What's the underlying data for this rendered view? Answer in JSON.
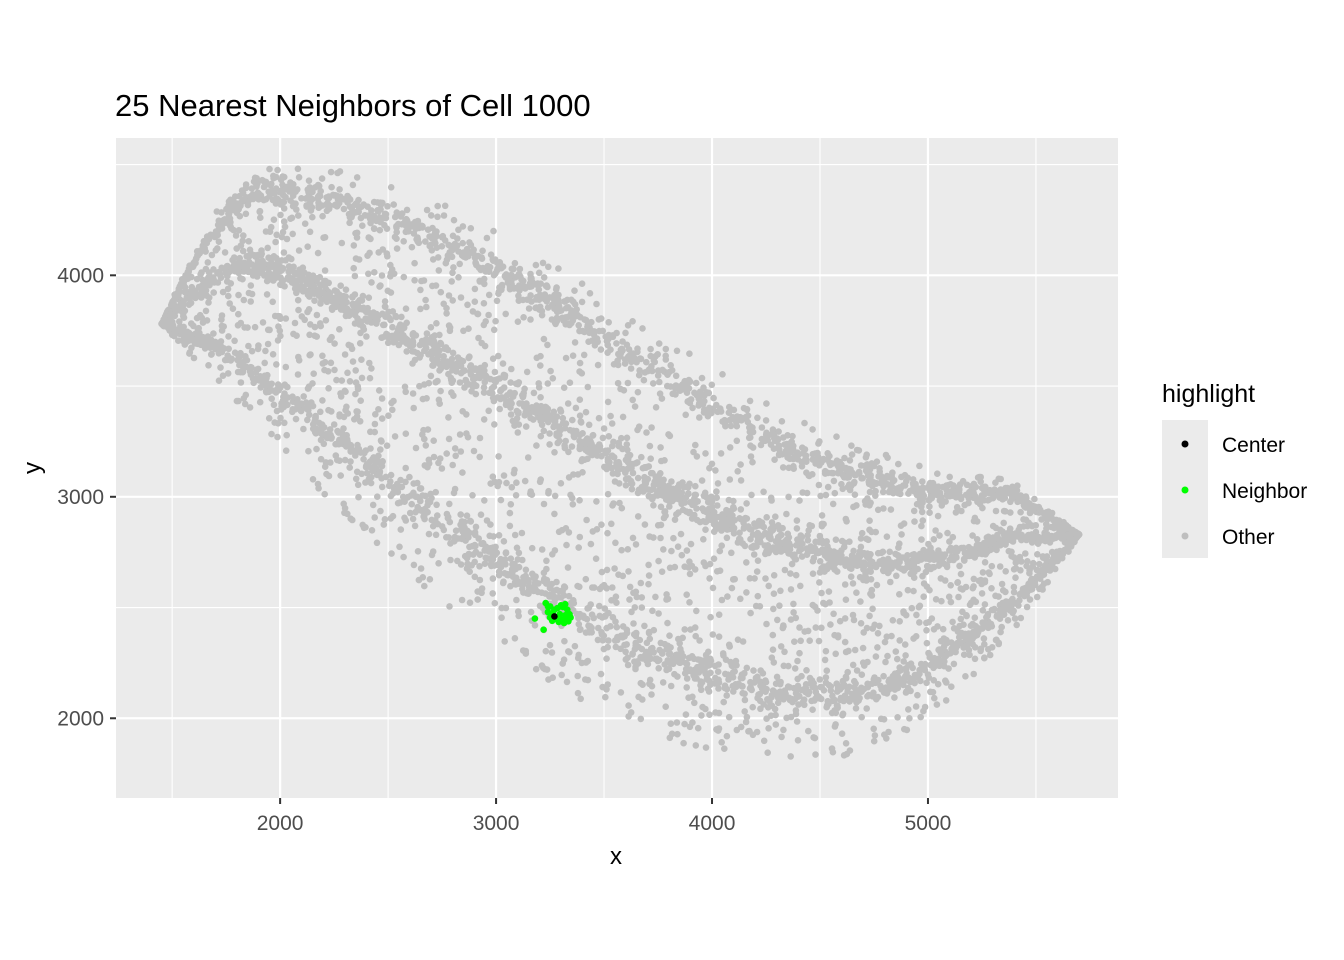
{
  "chart_data": {
    "type": "scatter",
    "title": "25 Nearest Neighbors of Cell 1000",
    "xlabel": "x",
    "ylabel": "y",
    "xlim": [
      1240,
      5880
    ],
    "ylim": [
      1640,
      4620
    ],
    "x_ticks": [
      2000,
      3000,
      4000,
      5000
    ],
    "y_ticks": [
      2000,
      3000,
      4000
    ],
    "x_tick_labels": [
      "2000",
      "3000",
      "4000",
      "5000"
    ],
    "y_tick_labels": [
      "2000",
      "3000",
      "4000"
    ],
    "grid": true,
    "legend_position": "right",
    "legend_title": "highlight",
    "series": [
      {
        "name": "Center",
        "color": "#000000",
        "points": [
          [
            3270,
            2460
          ]
        ]
      },
      {
        "name": "Neighbor",
        "color": "#00ff00",
        "points": [
          [
            3230,
            2520
          ],
          [
            3250,
            2505
          ],
          [
            3285,
            2498
          ],
          [
            3310,
            2502
          ],
          [
            3330,
            2490
          ],
          [
            3240,
            2480
          ],
          [
            3262,
            2475
          ],
          [
            3295,
            2470
          ],
          [
            3320,
            2465
          ],
          [
            3340,
            2470
          ],
          [
            3250,
            2455
          ],
          [
            3280,
            2448
          ],
          [
            3305,
            2445
          ],
          [
            3325,
            2450
          ],
          [
            3345,
            2455
          ],
          [
            3260,
            2440
          ],
          [
            3290,
            2435
          ],
          [
            3315,
            2430
          ],
          [
            3335,
            2438
          ],
          [
            3180,
            2450
          ],
          [
            3220,
            2400
          ],
          [
            3300,
            2510
          ],
          [
            3270,
            2490
          ],
          [
            3240,
            2505
          ],
          [
            3320,
            2515
          ]
        ]
      },
      {
        "name": "Other",
        "color": "#bebebe",
        "points": []
      }
    ],
    "other_point_count": 5200
  }
}
